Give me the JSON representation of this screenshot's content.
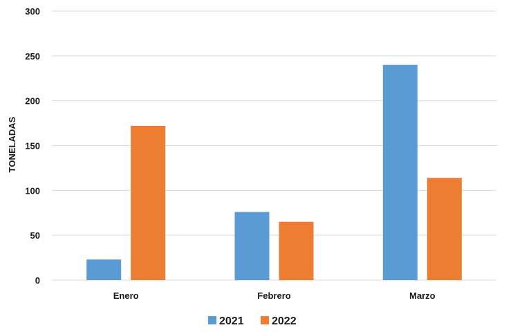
{
  "chart_data": {
    "type": "bar",
    "title": "",
    "xlabel": "",
    "ylabel": "TONELADAS",
    "categories": [
      "Enero",
      "Febrero",
      "Marzo"
    ],
    "series": [
      {
        "name": "2021",
        "color": "#5B9BD5",
        "values": [
          23,
          76,
          240
        ]
      },
      {
        "name": "2022",
        "color": "#ED7D31",
        "values": [
          172,
          65,
          114
        ]
      }
    ],
    "ylim": [
      0,
      300
    ],
    "yticks": [
      0,
      50,
      100,
      150,
      200,
      250,
      300
    ],
    "grid": true,
    "legend_position": "bottom-center"
  }
}
